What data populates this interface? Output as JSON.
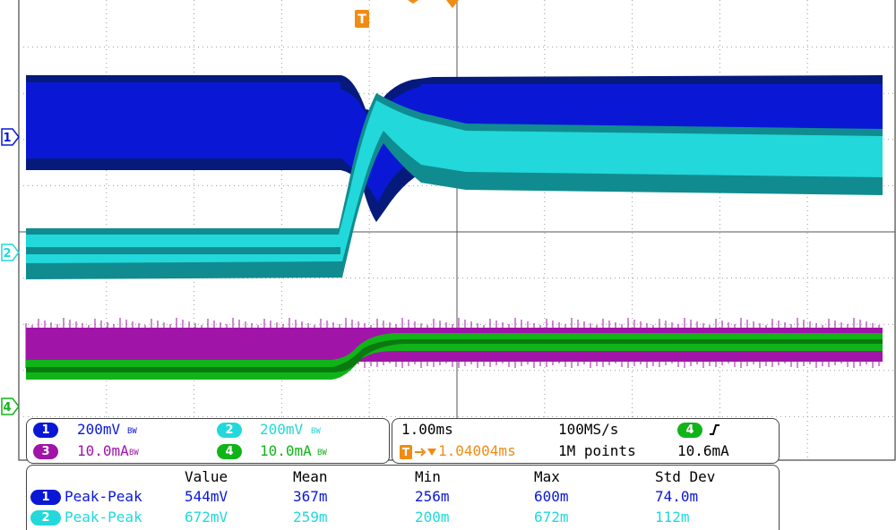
{
  "colors": {
    "ch1": "#0a18d6",
    "ch1_dark": "#061a7c",
    "ch2": "#22d8da",
    "ch2_dark": "#108c90",
    "ch3": "#a014a8",
    "ch4": "#10b418",
    "trigger": "#f08c14",
    "grid": "#9a9a9a"
  },
  "markers": {
    "trigger_top": "T",
    "ch1": "1",
    "ch2": "2",
    "ch4": "4"
  },
  "channels": [
    {
      "num": "1",
      "scale": "200mV",
      "bw": "BW"
    },
    {
      "num": "2",
      "scale": "200mV",
      "bw": "BW"
    },
    {
      "num": "3",
      "scale": "10.0mA",
      "bw": "BW"
    },
    {
      "num": "4",
      "scale": "10.0mA",
      "bw": "BW"
    }
  ],
  "timebase": {
    "scale": "1.00ms",
    "sample_rate": "100MS/s",
    "trigger_channel": "4",
    "trigger_slope": "rising-edge-icon",
    "trigger_pos_marker": "T",
    "trigger_position": "1.04004ms",
    "record_length": "1M points",
    "trigger_level": "10.6mA"
  },
  "measurements": {
    "headers": [
      "Value",
      "Mean",
      "Min",
      "Max",
      "Std Dev"
    ],
    "rows": [
      {
        "ch": "1",
        "label": "Peak-Peak",
        "value": "544mV",
        "mean": "367m",
        "min": "256m",
        "max": "600m",
        "std": "74.0m"
      },
      {
        "ch": "2",
        "label": "Peak-Peak",
        "value": "672mV",
        "mean": "259m",
        "min": "200m",
        "max": "672m",
        "std": "112m"
      }
    ]
  }
}
